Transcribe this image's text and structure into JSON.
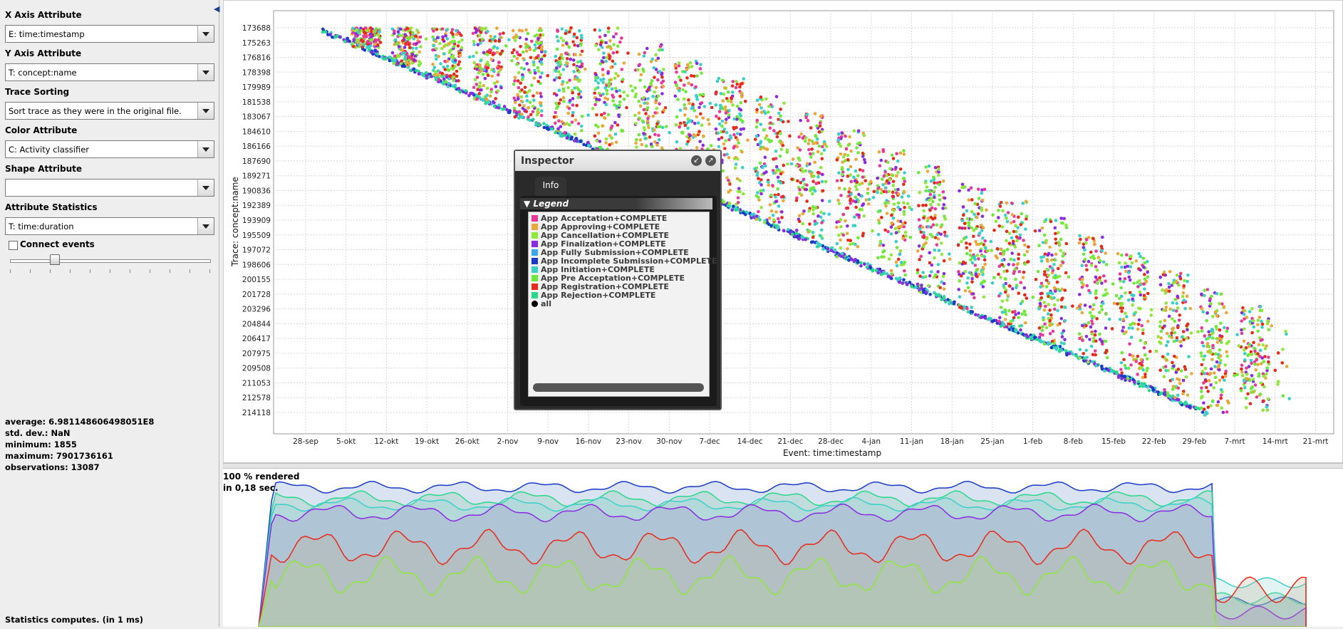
{
  "sidebar": {
    "x_axis": {
      "label": "X Axis Attribute",
      "value": "E: time:timestamp"
    },
    "y_axis": {
      "label": "Y Axis Attribute",
      "value": "T: concept:name"
    },
    "trace_sorting": {
      "label": "Trace Sorting",
      "value": "Sort trace as they were in the original file."
    },
    "color_attr": {
      "label": "Color Attribute",
      "value": "C: Activity classifier"
    },
    "shape_attr": {
      "label": "Shape Attribute",
      "value": ""
    },
    "attr_stats": {
      "label": "Attribute Statistics",
      "value": "T: time:duration"
    },
    "connect_events": {
      "label": "Connect events",
      "checked": false
    },
    "slider_level": 0.22,
    "stats": {
      "average": "average: 6.981148606498051E8",
      "stddev": "std. dev.: NaN",
      "minimum": "minimum: 1855",
      "maximum": "maximum: 7901736161",
      "observations": "observations: 13087"
    },
    "footer": "Statistics computes. (in 1 ms)"
  },
  "render_status": {
    "line1": "100 % rendered",
    "line2": "in 0,18 sec."
  },
  "inspector": {
    "title": "Inspector",
    "tab": "Info",
    "legend_title": "Legend",
    "items": [
      {
        "label": "App  Acceptation+COMPLETE",
        "color": "#e8399b"
      },
      {
        "label": "App  Approving+COMPLETE",
        "color": "#e8a93a"
      },
      {
        "label": "App  Cancellation+COMPLETE",
        "color": "#8ee83a"
      },
      {
        "label": "App  Finalization+COMPLETE",
        "color": "#8a2be2"
      },
      {
        "label": "App  Fully  Submission+COMPLETE",
        "color": "#3aa8e8"
      },
      {
        "label": "App  Incomplete  Submission+COMPLETE",
        "color": "#1a3ac8"
      },
      {
        "label": "App  Initiation+COMPLETE",
        "color": "#3ad0c8"
      },
      {
        "label": "App  Pre  Acceptation+COMPLETE",
        "color": "#6ee83a"
      },
      {
        "label": "App  Registration+COMPLETE",
        "color": "#e82a1a"
      },
      {
        "label": "App  Rejection+COMPLETE",
        "color": "#2ad88a"
      },
      {
        "label": "all",
        "color": "#000000"
      }
    ]
  },
  "chart_data": {
    "type": "scatter",
    "xlabel": "Event: time:timestamp",
    "ylabel": "Trace: concept:name",
    "x_ticks": [
      "28-sep",
      "5-okt",
      "12-okt",
      "19-okt",
      "26-okt",
      "2-nov",
      "9-nov",
      "16-nov",
      "23-nov",
      "30-nov",
      "7-dec",
      "14-dec",
      "21-dec",
      "28-dec",
      "4-jan",
      "11-jan",
      "18-jan",
      "25-jan",
      "1-feb",
      "8-feb",
      "15-feb",
      "22-feb",
      "29-feb",
      "7-mrt",
      "14-mrt",
      "21-mrt"
    ],
    "y_ticks": [
      "173688",
      "175263",
      "176816",
      "178398",
      "179989",
      "181538",
      "183067",
      "184610",
      "186166",
      "187690",
      "189271",
      "190836",
      "192389",
      "193909",
      "195509",
      "197072",
      "198606",
      "200155",
      "201728",
      "203296",
      "204844",
      "206417",
      "207975",
      "209508",
      "211053",
      "212578",
      "214118"
    ],
    "series_colors": [
      "#e8399b",
      "#e8a93a",
      "#8ee83a",
      "#8a2be2",
      "#3aa8e8",
      "#1a3ac8",
      "#3ad0c8",
      "#6ee83a",
      "#e82a1a",
      "#2ad88a"
    ]
  }
}
